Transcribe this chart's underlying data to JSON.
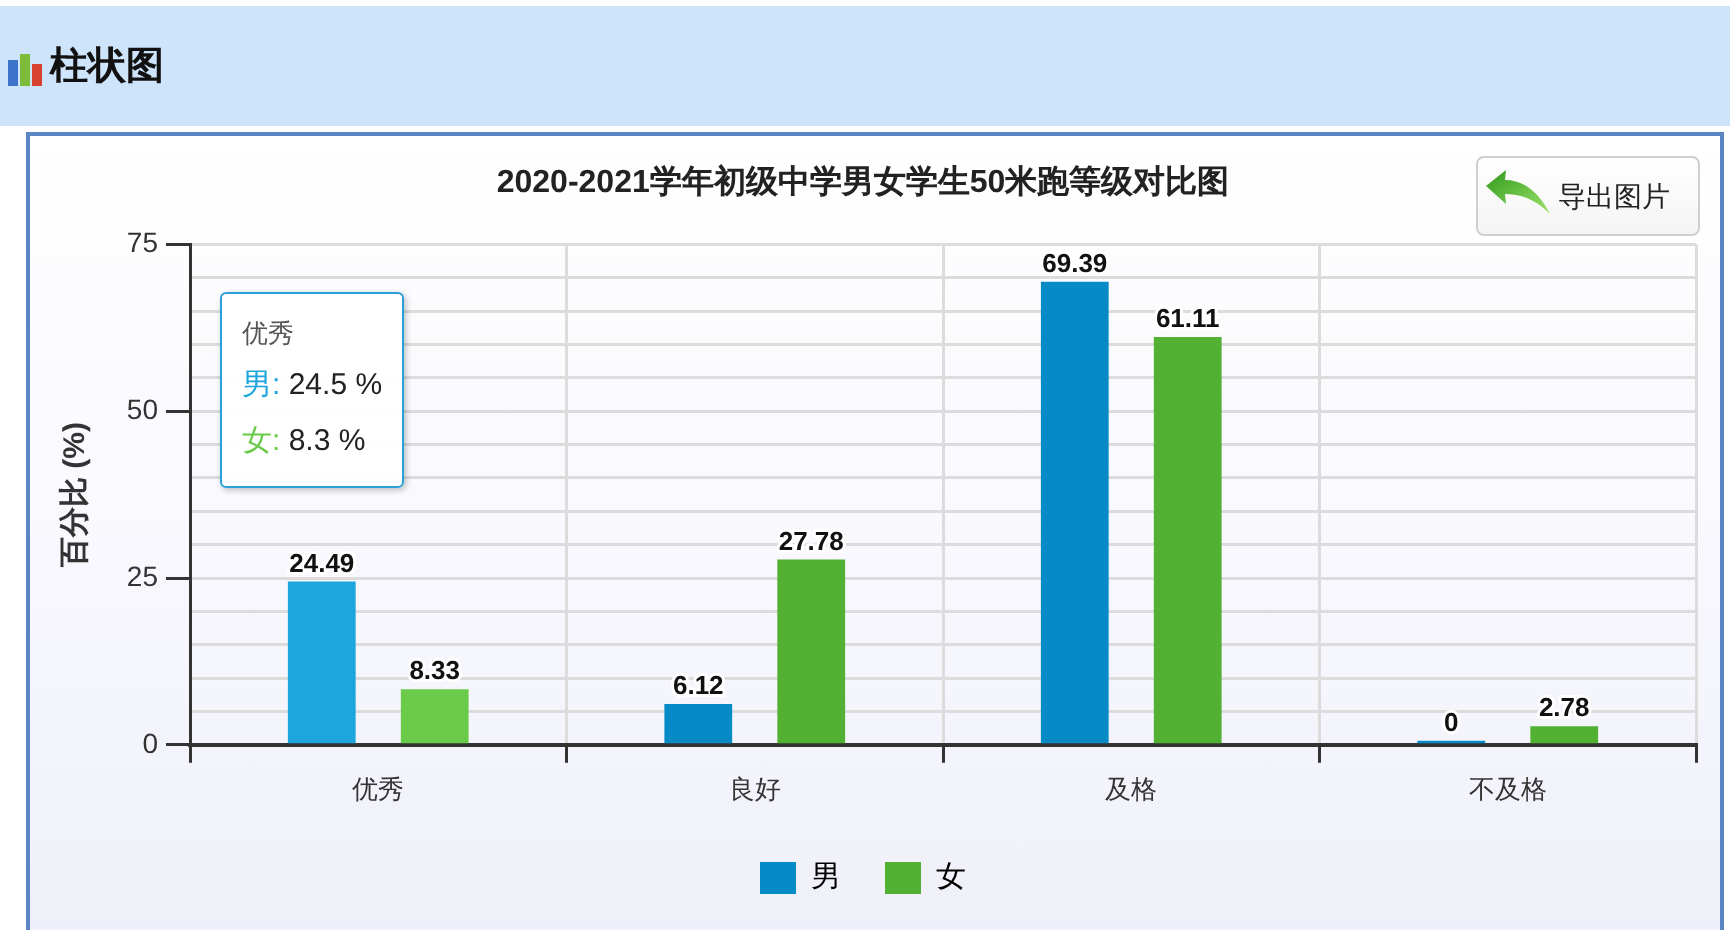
{
  "chart_data": {
    "type": "bar",
    "title": "2020-2021学年初级中学男女学生50米跑等级对比图",
    "ylabel": "百分比 (%)",
    "categories": [
      "优秀",
      "良好",
      "及格",
      "不及格"
    ],
    "series": [
      {
        "name": "男",
        "color": "#078bc7",
        "colors": [
          "#1da6de",
          "#078bc7",
          "#078bc7",
          "#078bc7"
        ],
        "values": [
          24.49,
          6.12,
          69.39,
          0
        ]
      },
      {
        "name": "女",
        "color": "#52b033",
        "colors": [
          "#6acb4a",
          "#52b033",
          "#52b033",
          "#52b033"
        ],
        "values": [
          8.33,
          27.78,
          61.11,
          2.78
        ]
      }
    ],
    "ylim": [
      0,
      75
    ],
    "yticks": [
      0,
      {
        "value": 5,
        "label": null
      },
      {
        "value": 10,
        "label": null
      },
      {
        "value": 15,
        "label": null
      },
      {
        "value": 20,
        "label": null
      },
      25,
      {
        "value": 30,
        "label": null
      },
      {
        "value": 35,
        "label": null
      },
      {
        "value": 40,
        "label": null
      },
      {
        "value": 45,
        "label": null
      },
      50,
      {
        "value": 55,
        "label": null
      },
      {
        "value": 60,
        "label": null
      },
      {
        "value": 65,
        "label": null
      },
      {
        "value": 70,
        "label": null
      },
      75
    ],
    "grid": true,
    "legend": "bottom",
    "data_labels": true,
    "annotations": [
      "柱状图",
      "导出图片",
      "优秀",
      "男: 24.5 %",
      "女: 8.3 %"
    ]
  }
}
